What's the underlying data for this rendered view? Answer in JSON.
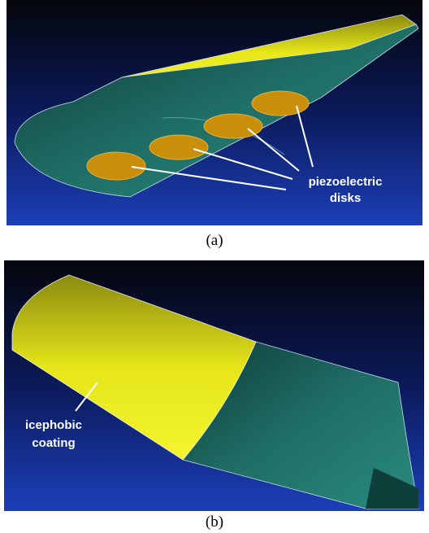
{
  "panels": [
    {
      "label": "(a)",
      "annotation": [
        "piezoelectric",
        "disks"
      ]
    },
    {
      "label": "(b)",
      "annotation": [
        "icephobic",
        "coating"
      ]
    }
  ]
}
